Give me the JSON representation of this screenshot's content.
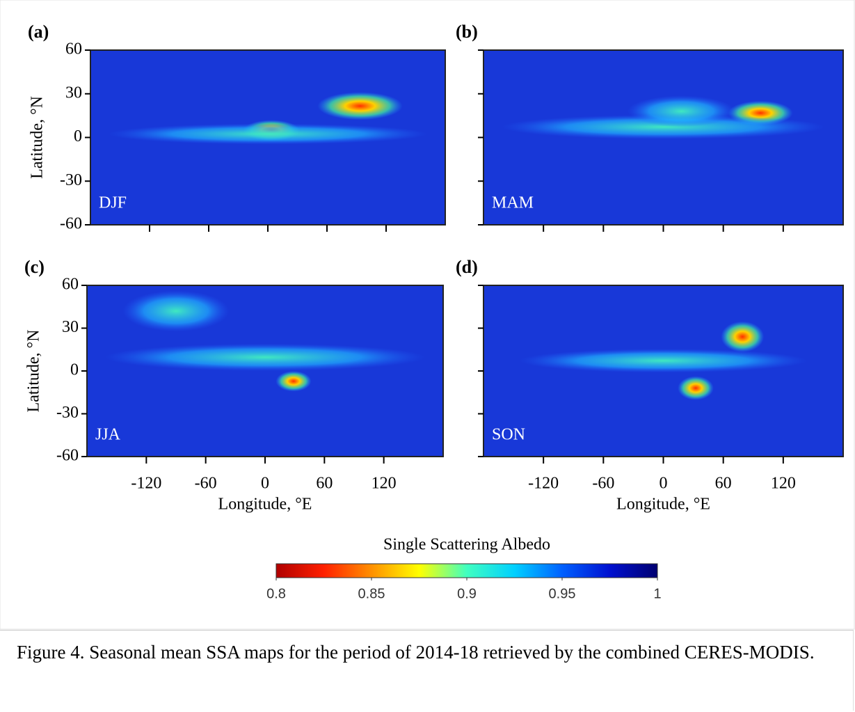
{
  "figure": {
    "panels": [
      {
        "label": "(a)",
        "season": "DJF"
      },
      {
        "label": "(b)",
        "season": "MAM"
      },
      {
        "label": "(c)",
        "season": "JJA"
      },
      {
        "label": "(d)",
        "season": "SON"
      }
    ],
    "y_axis_label": "Latitude, °N",
    "x_axis_label": "Longitude, °E",
    "lat_range": [
      -60,
      60
    ],
    "lat_ticks": [
      60,
      30,
      0,
      -30,
      -60
    ],
    "lon_range": [
      -180,
      180
    ],
    "lon_ticks": [
      -120,
      -60,
      0,
      60,
      120
    ],
    "colorbar": {
      "title": "Single Scattering Albedo",
      "range": [
        0.8,
        1
      ],
      "ticks": [
        0.8,
        0.85,
        0.9,
        0.95,
        1
      ],
      "colors": [
        "#b00000",
        "#ff2000",
        "#ff9000",
        "#ffff00",
        "#40ffc0",
        "#00d0ff",
        "#0060ff",
        "#0010d0",
        "#000070"
      ]
    }
  },
  "caption": "Figure 4. Seasonal mean SSA maps for the period of 2014-18 retrieved by the combined CERES-MODIS."
}
